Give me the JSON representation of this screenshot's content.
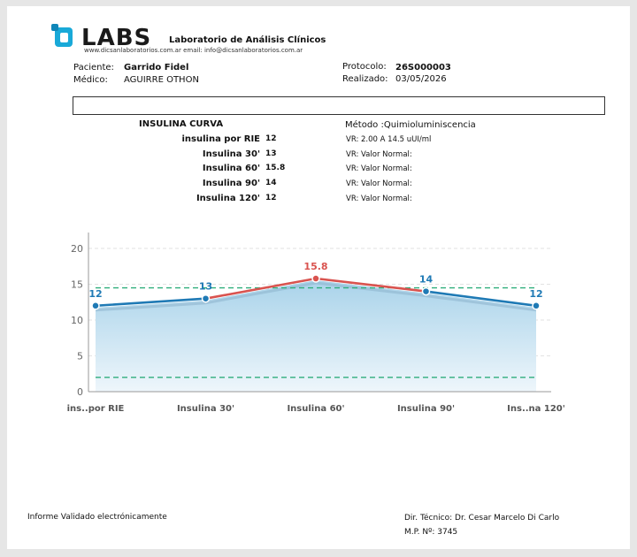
{
  "header": {
    "logo_text": "LABS",
    "lab_name": "Laboratorio de Análisis Clínicos",
    "lab_contact": "www.dicsanlaboratorios.com.ar email: info@dicsanlaboratorios.com.ar"
  },
  "patient": {
    "paciente_label": "Paciente:",
    "paciente_value": "Garrido Fidel",
    "medico_label": "Médico:",
    "medico_value": "AGUIRRE OTHON",
    "protocolo_label": "Protocolo:",
    "protocolo_value": "26S000003",
    "realizado_label": "Realizado:",
    "realizado_value": "03/05/2026"
  },
  "test": {
    "title": "INSULINA CURVA",
    "metodo": "Método :Quimioluminiscencia",
    "rows": [
      {
        "name": "insulina por RIE",
        "value": "12",
        "vr": "VR: 2.00 A 14.5 uUI/ml"
      },
      {
        "name": "Insulina 30'",
        "value": "13",
        "vr": "VR: Valor Normal:"
      },
      {
        "name": "Insulina 60'",
        "value": "15.8",
        "vr": "VR: Valor Normal:"
      },
      {
        "name": "Insulina 90'",
        "value": "14",
        "vr": "VR: Valor Normal:"
      },
      {
        "name": "Insulina 120'",
        "value": "12",
        "vr": "VR: Valor Normal:"
      }
    ]
  },
  "chart_data": {
    "type": "area",
    "categories": [
      "ins..por RIE",
      "Insulina 30'",
      "Insulina 60'",
      "Insulina 90'",
      "Ins..na 120'"
    ],
    "values": [
      12,
      13,
      15.8,
      14,
      12
    ],
    "value_labels": [
      "12",
      "13",
      "15.8",
      "14",
      "12"
    ],
    "y_ticks": [
      "0",
      "5",
      "10",
      "15",
      "20"
    ],
    "ylim": [
      0,
      20
    ],
    "reference_lines": [
      2.0,
      14.5
    ],
    "grid": true,
    "colors": {
      "line": "#1f7ab5",
      "out_of_range": "#d9534f",
      "reference": "#2fae7c",
      "area_top": "#a9d3ea",
      "area_bottom": "#eef6fb"
    }
  },
  "footer": {
    "validated": "Informe Validado electrónicamente",
    "director": "Dir. Técnico: Dr. Cesar Marcelo Di Carlo",
    "mp": "M.P. Nº: 3745"
  }
}
